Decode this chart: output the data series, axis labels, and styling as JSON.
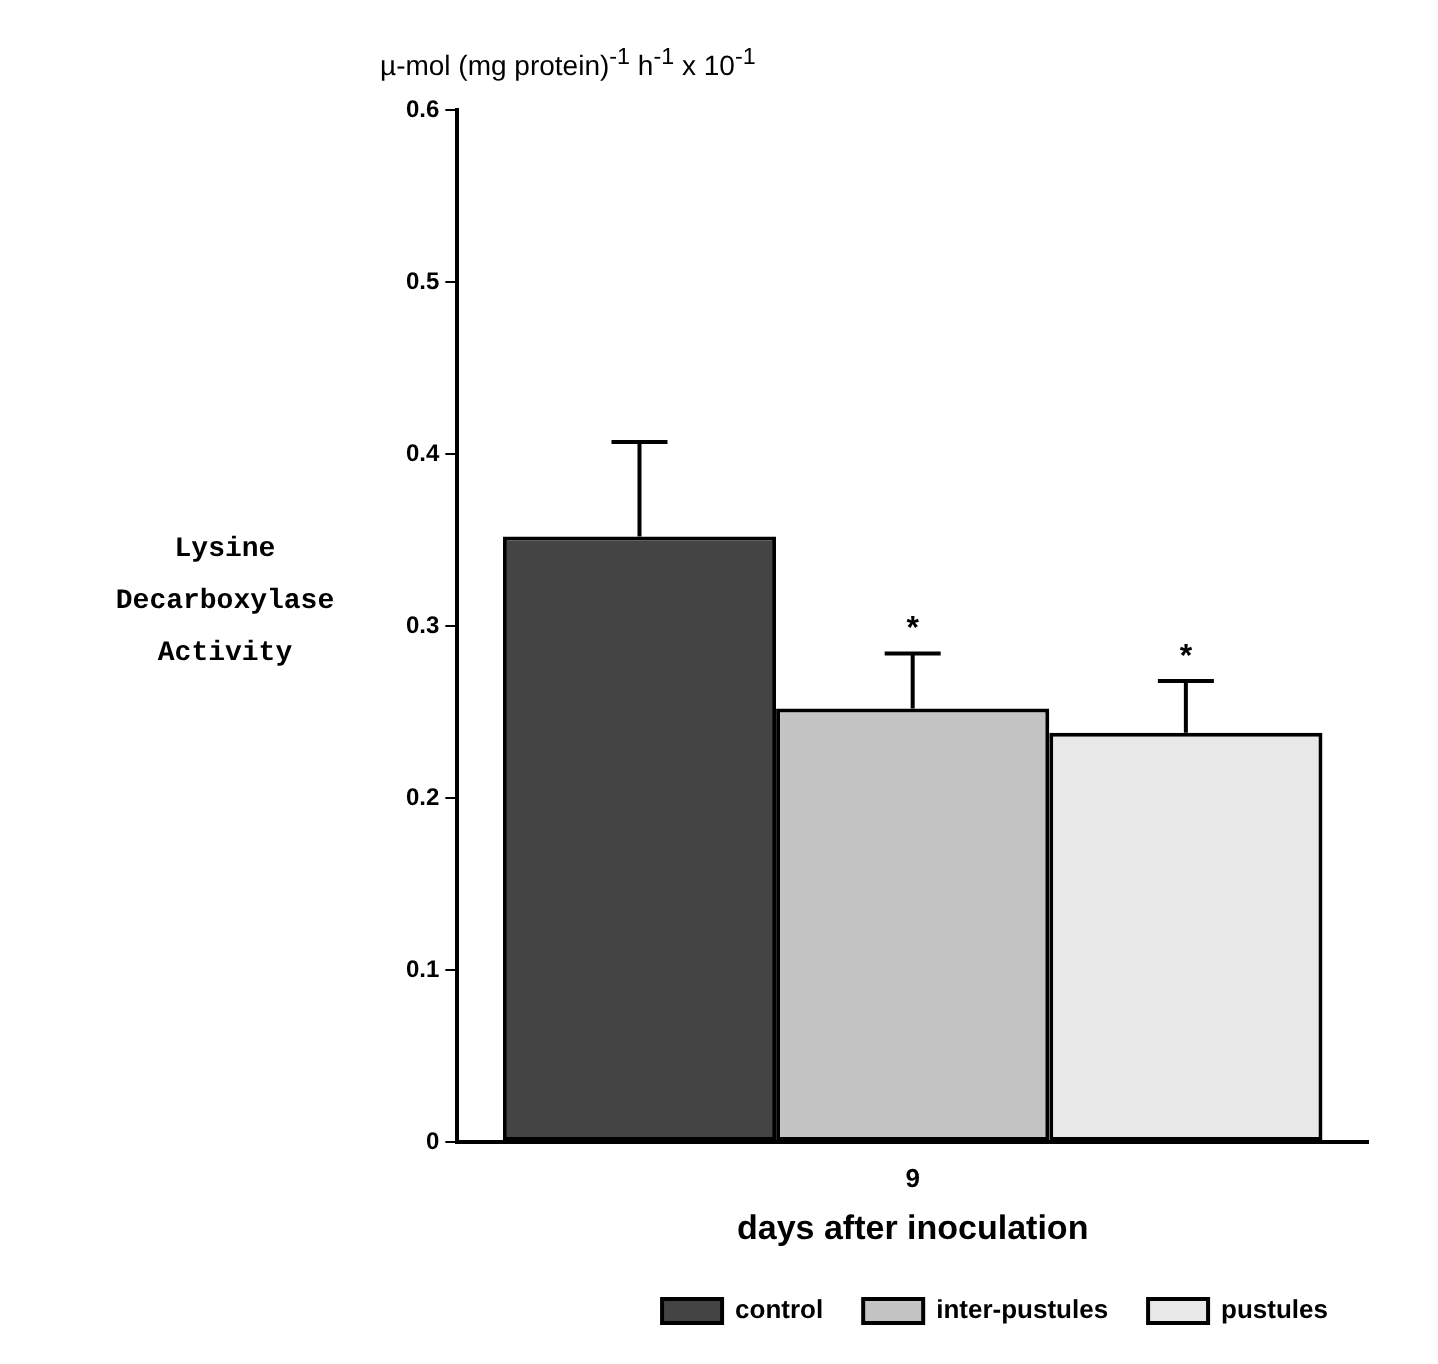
{
  "chart_data": {
    "type": "bar",
    "ylabel": "Lysine Decarboxylase Activity",
    "xlabel": "days after inoculation",
    "annotations": [
      "µ-mol (mg protein)$^{-1}$ h$^{-1}$ x 10$^{-1}$"
    ],
    "categories": [
      "9"
    ],
    "series": [
      {
        "name": "control",
        "color": "#444444",
        "values": [
          0.352
        ],
        "errors": [
          0.055
        ]
      },
      {
        "name": "inter-pustules",
        "color": "#c4c4c4",
        "values": [
          0.252
        ],
        "errors": [
          0.032
        ],
        "value_labels": [
          "*"
        ]
      },
      {
        "name": "pustules",
        "color": "#e8e8e8",
        "values": [
          0.238
        ],
        "errors": [
          0.03
        ],
        "value_labels": [
          "*"
        ]
      }
    ],
    "ylim": [
      0,
      0.6
    ],
    "yticks": [
      0,
      0.1,
      0.2,
      0.3,
      0.4,
      0.5,
      0.6
    ],
    "legend": "bottom"
  }
}
